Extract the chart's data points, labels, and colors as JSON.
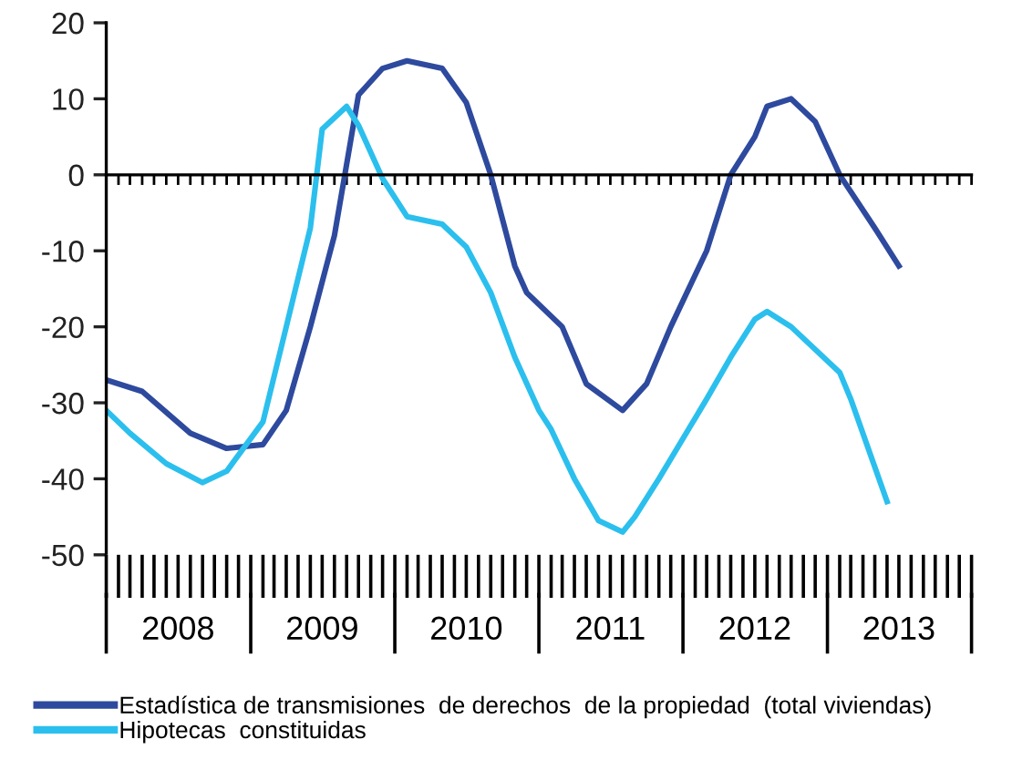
{
  "chart_data": {
    "type": "line",
    "xlim": [
      "2008-01",
      "2014-01"
    ],
    "xticks": [
      {
        "value": "2008-07",
        "label": "2008"
      },
      {
        "value": "2009-07",
        "label": "2009"
      },
      {
        "value": "2010-07",
        "label": "2010"
      },
      {
        "value": "2011-07",
        "label": "2011"
      },
      {
        "value": "2012-07",
        "label": "2012"
      },
      {
        "value": "2013-07",
        "label": "2013"
      }
    ],
    "ylim": [
      -50,
      20
    ],
    "yticks": [
      -50,
      -40,
      -30,
      -20,
      -10,
      0,
      10,
      20
    ],
    "legend": "bottom",
    "series": [
      {
        "name": "Estadística de transmisiones  de derechos  de la propiedad  (total viviendas)",
        "color": "#2e4a9e",
        "x": [
          "2008-01",
          "2008-04",
          "2008-08",
          "2008-11",
          "2009-02",
          "2009-04",
          "2009-06",
          "2009-08",
          "2009-10",
          "2009-12",
          "2010-02",
          "2010-05",
          "2010-07",
          "2010-09",
          "2010-11",
          "2010-12",
          "2011-03",
          "2011-05",
          "2011-08",
          "2011-10",
          "2011-12",
          "2012-03",
          "2012-05",
          "2012-07",
          "2012-08",
          "2012-10",
          "2012-12",
          "2013-02",
          "2013-05",
          "2013-07"
        ],
        "values": [
          -27,
          -28.5,
          -34,
          -36,
          -35.5,
          -31,
          -20,
          -8,
          10.5,
          14,
          15,
          14,
          9.5,
          0,
          -12,
          -15.5,
          -20,
          -27.5,
          -31,
          -27.5,
          -20,
          -10,
          0,
          5,
          9,
          10,
          7,
          0,
          -7,
          -12
        ]
      },
      {
        "name": "Hipotecas  constituidas",
        "color": "#2bbfee",
        "x": [
          "2008-01",
          "2008-03",
          "2008-06",
          "2008-09",
          "2008-11",
          "2009-02",
          "2009-04",
          "2009-06",
          "2009-07",
          "2009-09",
          "2009-10",
          "2009-12",
          "2010-02",
          "2010-05",
          "2010-07",
          "2010-09",
          "2010-11",
          "2011-01",
          "2011-02",
          "2011-04",
          "2011-06",
          "2011-08",
          "2011-09",
          "2011-11",
          "2012-03",
          "2012-05",
          "2012-07",
          "2012-08",
          "2012-10",
          "2013-02",
          "2013-03",
          "2013-06"
        ],
        "values": [
          -31,
          -34,
          -38,
          -40.5,
          -39,
          -32.5,
          -20,
          -7,
          6,
          9,
          6.5,
          -0.5,
          -5.5,
          -6.5,
          -9.5,
          -15.5,
          -24,
          -31,
          -33.5,
          -40,
          -45.5,
          -47,
          -45,
          -40,
          -29.5,
          -24,
          -19,
          -18,
          -20,
          -26,
          -29.5,
          -43
        ]
      }
    ]
  }
}
